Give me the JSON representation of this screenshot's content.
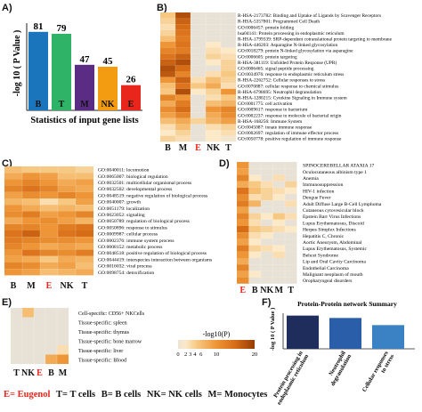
{
  "panels": {
    "A": {
      "letter": "A)",
      "ylabel": "-log 10 ( P Value )",
      "xlabel": "Statistics of input gene lists",
      "chart_data": {
        "type": "bar",
        "categories": [
          "B",
          "T",
          "M",
          "NK",
          "E"
        ],
        "values": [
          81,
          79,
          47,
          45,
          26
        ],
        "ylim": [
          0,
          90
        ],
        "colors": [
          "#1b75bc",
          "#2fb366",
          "#5b2c83",
          "#f39c12",
          "#e8261c"
        ],
        "grid": false
      }
    },
    "B": {
      "letter": "B)",
      "terms": [
        "R-HSA-2173782: Binding and Uptake of Ligands by Scavenger Receptors",
        "R-HSA-5357801: Programmed Cell Death",
        "GO:0006457: protein folding",
        "hsa04141: Protein processing in endoplasmic reticulum",
        "R-HSA-1799339: SRP-dependent cotranslational protein targeting to membrane",
        "R-HSA-446203: Asparagine N-linked glycosylation",
        "GO:0018279: protein N-linked glycosylation via asparagine",
        "GO:0006605: protein targeting",
        "R-HSA-381119: Unfolded Protein Response (UPR)",
        "GO:0006465: signal peptide processing",
        "GO:0034976: response to endoplasmic reticulum stress",
        "R-HSA-2262752: Cellular responses to stress",
        "GO:0070887: cellular response to chemical stimulus",
        "R-HSA-6798695: Neutrophil degranulation",
        "R-HSA-1280215: Cytokine Signaling in Immune system",
        "GO:0001775: cell activation",
        "GO:0009617: response to bacterium",
        "GO:0002237: response to molecule of bacterial origin",
        "R-HSA-168256: Immune System",
        "GO:0045087: innate immune response",
        "GO:0002697: regulation of immune effector process",
        "GO:0050778: positive regulation of immune response"
      ],
      "columns": [
        "B",
        "M",
        "E",
        "NK",
        "T"
      ],
      "heat": [
        [
          5,
          18,
          0,
          0,
          0
        ],
        [
          4,
          16,
          0,
          0,
          0
        ],
        [
          3,
          15,
          0,
          0,
          0
        ],
        [
          4,
          14,
          0,
          0,
          0
        ],
        [
          6,
          13,
          0,
          0,
          0
        ],
        [
          10,
          14,
          0,
          2,
          0
        ],
        [
          12,
          13,
          0,
          3,
          2
        ],
        [
          14,
          16,
          0,
          4,
          3
        ],
        [
          16,
          18,
          0,
          2,
          4
        ],
        [
          18,
          15,
          0,
          0,
          4
        ],
        [
          17,
          12,
          0,
          3,
          5
        ],
        [
          10,
          16,
          3,
          6,
          4
        ],
        [
          6,
          14,
          5,
          8,
          3
        ],
        [
          5,
          18,
          2,
          4,
          10
        ],
        [
          12,
          10,
          0,
          3,
          5
        ],
        [
          8,
          13,
          0,
          6,
          7
        ],
        [
          11,
          15,
          0,
          10,
          12
        ],
        [
          9,
          12,
          0,
          8,
          11
        ],
        [
          6,
          8,
          4,
          7,
          9
        ],
        [
          3,
          6,
          0,
          3,
          4
        ],
        [
          2,
          4,
          0,
          2,
          3
        ],
        [
          4,
          3,
          0,
          2,
          1
        ]
      ]
    },
    "C": {
      "letter": "C)",
      "terms": [
        "GO:0040011: locomotion",
        "GO:0065007: biological regulation",
        "GO:0032501: multicellular organismal process",
        "GO:0032502: developmental process",
        "GO:0048519: negative regulation of biological process",
        "GO:0040007: growth",
        "GO:0051179: localization",
        "GO:0023052: signaling",
        "GO:0050789: regulation of biological process",
        "GO:0050896: response to stimulus",
        "GO:0009987: cellular process",
        "GO:0002376: immune system process",
        "GO:0008152: metabolic process",
        "GO:0048518: positive regulation of biological process",
        "GO:0044419: interspecies interaction between organisms",
        "GO:0016032: viral process",
        "GO:0098754: detoxification"
      ],
      "columns": [
        "B",
        "M",
        "E",
        "NK",
        "T"
      ],
      "heat": [
        [
          6,
          5,
          5,
          5,
          4
        ],
        [
          8,
          10,
          9,
          6,
          6
        ],
        [
          10,
          12,
          10,
          8,
          9
        ],
        [
          12,
          14,
          12,
          9,
          8
        ],
        [
          9,
          11,
          10,
          12,
          10
        ],
        [
          7,
          6,
          3,
          5,
          9
        ],
        [
          10,
          8,
          6,
          7,
          6
        ],
        [
          11,
          13,
          9,
          10,
          12
        ],
        [
          8,
          10,
          11,
          9,
          7
        ],
        [
          12,
          12,
          10,
          13,
          14
        ],
        [
          14,
          16,
          10,
          14,
          15
        ],
        [
          13,
          12,
          11,
          11,
          10
        ],
        [
          12,
          10,
          8,
          9,
          8
        ],
        [
          10,
          14,
          12,
          11,
          13
        ],
        [
          9,
          8,
          5,
          8,
          7
        ],
        [
          12,
          11,
          8,
          9,
          6
        ],
        [
          10,
          9,
          6,
          7,
          8
        ]
      ]
    },
    "D": {
      "letter": "D)",
      "terms": [
        "SPINOCEREBELLAR ATAXIA 17",
        "Oculocutaneous albinism type 1",
        "Anemia",
        "Immunosuppression",
        "HIV-1 infection",
        "Dengue Fever",
        "Adult Diffuse Large B-Cell Lymphoma",
        "Cutaneous cytovesicular block",
        "Epstein Barr Virus Infections",
        "Lupus Erythematosus, Discoid",
        "Herpes Simplex Infections",
        "Hepatitis C, Chronic",
        "Aortic Aneurysm, Abdominal",
        "Lupus Erythematosus, Systemic",
        "Behcet Syndrome",
        "Lip and Oral Cavity Carcinoma",
        "Endothelial Carcinoma",
        "Malignant neoplasm of mouth",
        "Oropharyngeal disorders"
      ],
      "columns": [
        "E",
        "B",
        "NK",
        "M",
        "T"
      ],
      "heat": [
        [
          10,
          0,
          0,
          0,
          0
        ],
        [
          9,
          0,
          0,
          0,
          0
        ],
        [
          12,
          2,
          0,
          3,
          0
        ],
        [
          8,
          5,
          3,
          0,
          4
        ],
        [
          14,
          6,
          4,
          3,
          2
        ],
        [
          11,
          3,
          4,
          2,
          0
        ],
        [
          13,
          7,
          0,
          0,
          3
        ],
        [
          9,
          0,
          0,
          0,
          0
        ],
        [
          12,
          4,
          2,
          5,
          3
        ],
        [
          10,
          3,
          0,
          2,
          0
        ],
        [
          15,
          5,
          4,
          3,
          2
        ],
        [
          11,
          3,
          2,
          0,
          0
        ],
        [
          9,
          2,
          0,
          0,
          0
        ],
        [
          13,
          4,
          3,
          2,
          0
        ],
        [
          10,
          2,
          0,
          3,
          0
        ],
        [
          8,
          0,
          0,
          0,
          0
        ],
        [
          12,
          0,
          0,
          0,
          0
        ],
        [
          9,
          2,
          0,
          0,
          0
        ],
        [
          11,
          0,
          0,
          0,
          0
        ]
      ]
    },
    "E": {
      "letter": "E)",
      "terms": [
        "Cell-specific: CD56+ NKCells",
        "Tissue-specific: spleen",
        "Tissue-specific: thymus",
        "Tissue-specific: bone marrow",
        "Tissue-specific: liver",
        "Tissue-specific: Blood"
      ],
      "columns": [
        "T",
        "NK",
        "E",
        "B",
        "M"
      ],
      "heat": [
        [
          0,
          6,
          0,
          0,
          0
        ],
        [
          0,
          0,
          0,
          0,
          0
        ],
        [
          0,
          0,
          0,
          0,
          0
        ],
        [
          0,
          0,
          0,
          0,
          0
        ],
        [
          0,
          0,
          0,
          0,
          3
        ],
        [
          0,
          0,
          0,
          8,
          10
        ]
      ],
      "legend_title": "-log10(P)",
      "legend_ticks": [
        "0",
        "2",
        "3",
        "4",
        "6",
        "10",
        "20"
      ]
    },
    "F": {
      "letter": "F)",
      "title": "Protein-Protein network Summary",
      "ylabel": "-log 10 ( P Value )",
      "chart_data": {
        "type": "bar",
        "categories": [
          "Protein processing in endoplasmic reticulum",
          "Neutrophil degranulation",
          "Cellular responses to stress"
        ],
        "values": [
          28,
          26,
          20
        ],
        "ylim": [
          0,
          30
        ],
        "colors": [
          "#1f2d5c",
          "#2a5ea8",
          "#3b82c4"
        ]
      }
    }
  },
  "footer": {
    "E_letter": "E",
    "E_def": "= Eugenol",
    "T_def": "T= T cells",
    "B_def": "B= B cells",
    "NK_def": "NK= NK cells",
    "M_def": "M= Monocytes"
  },
  "colors": {
    "accent_red": "#e8261c",
    "heat_low": "#fdf1e0",
    "heat_high": "#9c3d06"
  }
}
